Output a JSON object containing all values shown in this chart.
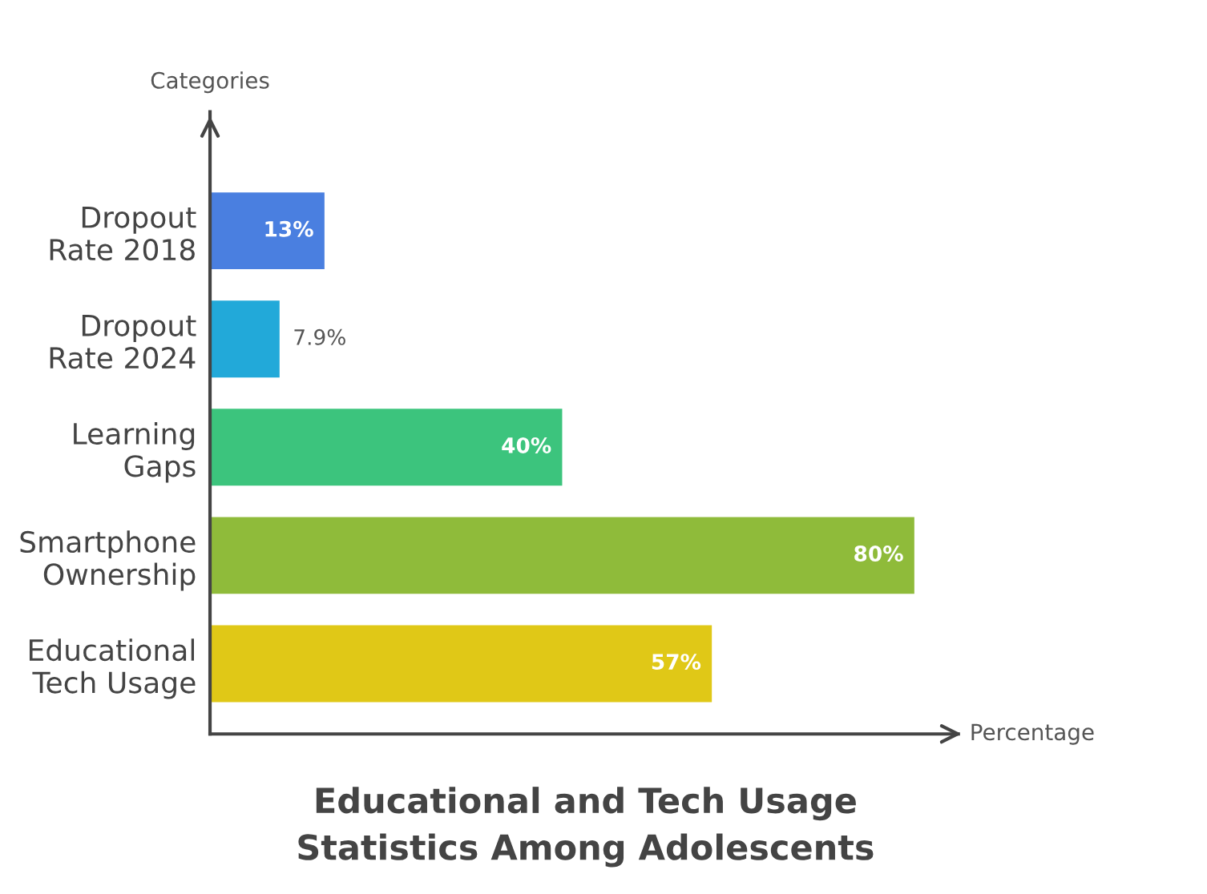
{
  "chart_data": {
    "type": "bar",
    "orientation": "horizontal",
    "title": "Educational and Tech Usage\nStatistics Among Adolescents",
    "xlabel": "Percentage",
    "ylabel": "Categories",
    "categories": [
      "Dropout\nRate 2018",
      "Dropout\nRate 2024",
      "Learning\nGaps",
      "Smartphone\nOwnership",
      "Educational\nTech Usage"
    ],
    "values": [
      13,
      7.9,
      40,
      80,
      57
    ],
    "value_labels": [
      "13%",
      "7.9%",
      "40%",
      "80%",
      "57%"
    ],
    "colors": [
      "#4a7fe0",
      "#22a9d9",
      "#3cc47d",
      "#8fbb3a",
      "#e0c817"
    ],
    "xlim": [
      0,
      85
    ],
    "tick_labels": "y",
    "grid": false,
    "legend": false
  }
}
